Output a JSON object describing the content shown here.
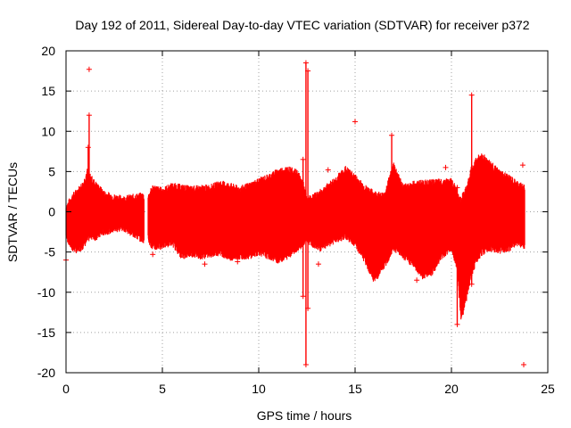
{
  "chart_data": {
    "type": "scatter",
    "title": "Day 192 of 2011, Sidereal Day-to-day VTEC variation (SDTVAR) for receiver p372",
    "xlabel": "GPS time / hours",
    "ylabel": "SDTVAR / TECUs",
    "xlim": [
      0,
      25
    ],
    "ylim": [
      -20,
      20
    ],
    "x_ticks": [
      0,
      5,
      10,
      15,
      20,
      25
    ],
    "y_ticks": [
      -20,
      -15,
      -10,
      -5,
      0,
      5,
      10,
      15,
      20
    ],
    "x_tick_labels": [
      "0",
      "5",
      "10",
      "15",
      "20",
      "25"
    ],
    "y_tick_labels": [
      "-20",
      "-15",
      "-10",
      "-5",
      "0",
      "5",
      "10",
      "15",
      "20"
    ],
    "grid": true,
    "marker": "+",
    "series": [
      {
        "name": "SDTVAR",
        "color": "#ff0000",
        "envelope": {
          "x": [
            0.0,
            0.3,
            0.6,
            0.9,
            1.1,
            1.3,
            1.5,
            2.0,
            2.5,
            3.0,
            3.5,
            4.0,
            4.2,
            4.5,
            5.0,
            5.5,
            6.0,
            6.5,
            7.0,
            7.5,
            8.0,
            8.5,
            9.0,
            9.5,
            10.0,
            10.5,
            11.0,
            11.5,
            12.0,
            12.3,
            12.5,
            12.8,
            13.2,
            13.6,
            14.0,
            14.5,
            15.0,
            15.5,
            16.0,
            16.5,
            17.0,
            17.5,
            18.0,
            18.5,
            19.0,
            19.5,
            20.0,
            20.3,
            20.5,
            20.8,
            21.0,
            21.3,
            21.6,
            22.0,
            22.5,
            23.0,
            23.3,
            23.6,
            23.8
          ],
          "upper": [
            0.5,
            1.8,
            2.6,
            3.5,
            5.0,
            4.2,
            3.5,
            2.2,
            1.8,
            1.6,
            1.8,
            2.0,
            1.5,
            3.0,
            2.6,
            3.2,
            3.0,
            2.8,
            2.9,
            3.0,
            3.5,
            3.2,
            2.8,
            3.2,
            3.8,
            4.3,
            5.0,
            5.3,
            4.8,
            3.5,
            1.5,
            1.8,
            2.4,
            3.2,
            4.0,
            5.3,
            4.3,
            3.0,
            2.2,
            2.0,
            5.8,
            3.0,
            3.4,
            3.6,
            3.6,
            3.7,
            3.8,
            2.5,
            1.5,
            3.0,
            5.0,
            6.5,
            7.0,
            6.0,
            4.8,
            4.2,
            3.6,
            3.2,
            3.0
          ],
          "lower": [
            -3.0,
            -4.5,
            -4.8,
            -4.2,
            -3.5,
            -3.0,
            -3.2,
            -2.5,
            -2.2,
            -2.0,
            -2.8,
            -3.5,
            -3.0,
            -4.5,
            -4.2,
            -3.8,
            -5.5,
            -5.2,
            -5.5,
            -5.3,
            -5.0,
            -5.8,
            -5.5,
            -5.5,
            -5.0,
            -5.5,
            -6.0,
            -5.5,
            -4.5,
            -4.0,
            -3.5,
            -4.0,
            -4.5,
            -4.0,
            -3.5,
            -3.0,
            -4.0,
            -6.0,
            -8.5,
            -6.8,
            -4.5,
            -5.5,
            -6.5,
            -8.0,
            -7.5,
            -5.5,
            -4.5,
            -7.0,
            -13.5,
            -10.5,
            -8.0,
            -6.0,
            -5.0,
            -4.5,
            -4.8,
            -4.5,
            -4.0,
            -4.0,
            -4.2
          ]
        },
        "gaps": [
          [
            4.05,
            4.25
          ],
          [
            23.85,
            25
          ]
        ],
        "spikes": [
          {
            "x": 1.2,
            "top": 12.0,
            "bottom": -3.0
          },
          {
            "x": 1.15,
            "top": 8.0,
            "bottom": -2.0
          },
          {
            "x": 12.45,
            "top": 18.5,
            "bottom": -19.0
          },
          {
            "x": 12.55,
            "top": 17.5,
            "bottom": -12.0
          },
          {
            "x": 12.3,
            "top": 6.5,
            "bottom": -10.5
          },
          {
            "x": 16.9,
            "top": 9.5,
            "bottom": -3.0
          },
          {
            "x": 21.05,
            "top": 14.5,
            "bottom": -9.0
          },
          {
            "x": 20.3,
            "top": 3.0,
            "bottom": -14.0
          }
        ],
        "outliers": [
          {
            "x": 1.2,
            "y": 17.7
          },
          {
            "x": 15.0,
            "y": 11.2
          },
          {
            "x": 19.7,
            "y": 5.5
          },
          {
            "x": 23.75,
            "y": -19.0
          },
          {
            "x": 23.7,
            "y": 5.8
          },
          {
            "x": 13.6,
            "y": 5.2
          },
          {
            "x": 13.1,
            "y": -6.5
          },
          {
            "x": 8.9,
            "y": -6.2
          },
          {
            "x": 7.2,
            "y": -6.5
          },
          {
            "x": 4.5,
            "y": -5.3
          },
          {
            "x": 0.0,
            "y": -6.0
          },
          {
            "x": 18.2,
            "y": -8.5
          }
        ]
      }
    ]
  }
}
